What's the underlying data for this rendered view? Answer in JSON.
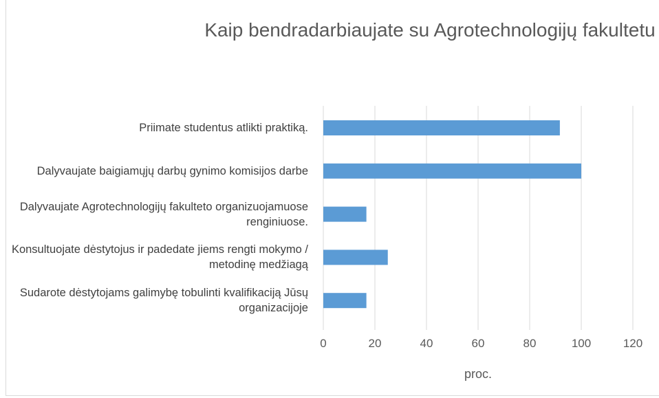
{
  "chart_data": {
    "type": "bar",
    "orientation": "horizontal",
    "title": "Kaip bendradarbiaujate su Agrotechnologijų fakultetu",
    "categories": [
      "Priimate studentus atlikti praktiką.",
      "Dalyvaujate baigiamųjų darbų gynimo komisijos darbe",
      "Dalyvaujate Agrotechnologijų fakulteto organizuojamuose renginiuose.",
      "Konsultuojate dėstytojus ir padedate jiems rengti mokymo / metodinę medžiagą",
      "Sudarote dėstytojams galimybę tobulinti kvalifikaciją Jūsų organizacijoje"
    ],
    "values": [
      91.7,
      100,
      16.7,
      25,
      16.7
    ],
    "color": "#5b9bd5",
    "xlabel": "proc.",
    "xlim": [
      0,
      120
    ],
    "xticks": [
      0,
      20,
      40,
      60,
      80,
      100,
      120
    ],
    "grid": true
  }
}
